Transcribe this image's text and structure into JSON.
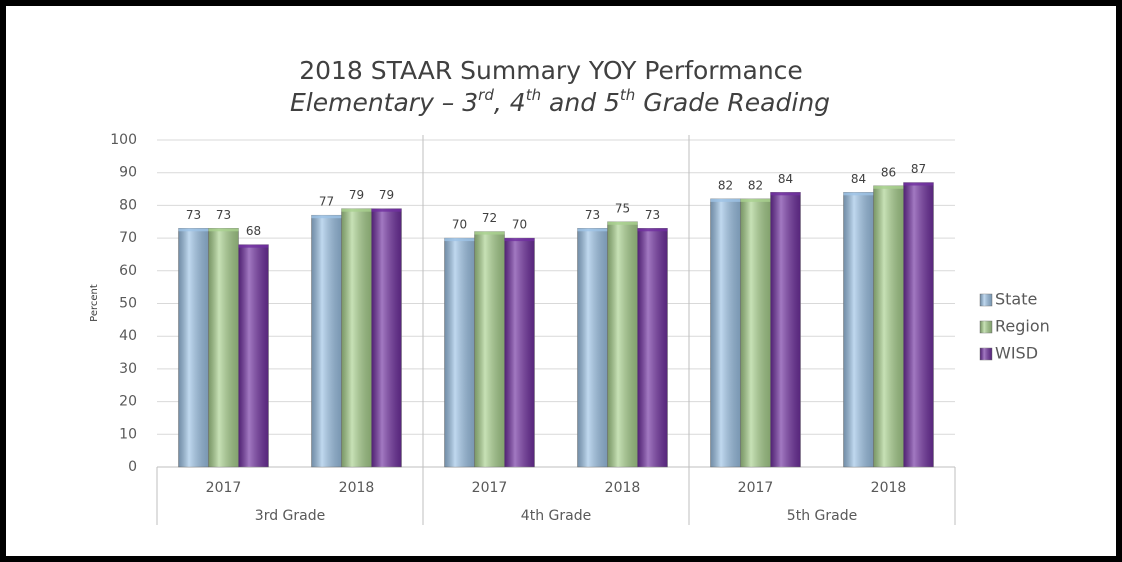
{
  "chart_data": {
    "type": "bar",
    "title": "2018 STAAR Summary YOY Performance",
    "subtitle": "Elementary – 3rd, 4th and 5th Grade Reading",
    "y_label": "Percent",
    "categories": [
      "2017",
      "2018",
      "2017",
      "2018",
      "2017",
      "2018"
    ],
    "groups": [
      "3rd Grade",
      "4th Grade",
      "5th Grade"
    ],
    "series": [
      {
        "name": "State",
        "color": "#9dc3e6",
        "values": [
          73,
          77,
          70,
          73,
          82,
          84
        ]
      },
      {
        "name": "Region",
        "color": "#a9d18e",
        "values": [
          73,
          79,
          72,
          75,
          82,
          86
        ]
      },
      {
        "name": "WISD",
        "color": "#7030a0",
        "values": [
          68,
          79,
          70,
          73,
          84,
          87
        ]
      }
    ],
    "ylim": [
      0,
      100
    ],
    "yticks": [
      0,
      10,
      20,
      30,
      40,
      50,
      60,
      70,
      80,
      90,
      100
    ],
    "grid": true,
    "legend": "right"
  }
}
